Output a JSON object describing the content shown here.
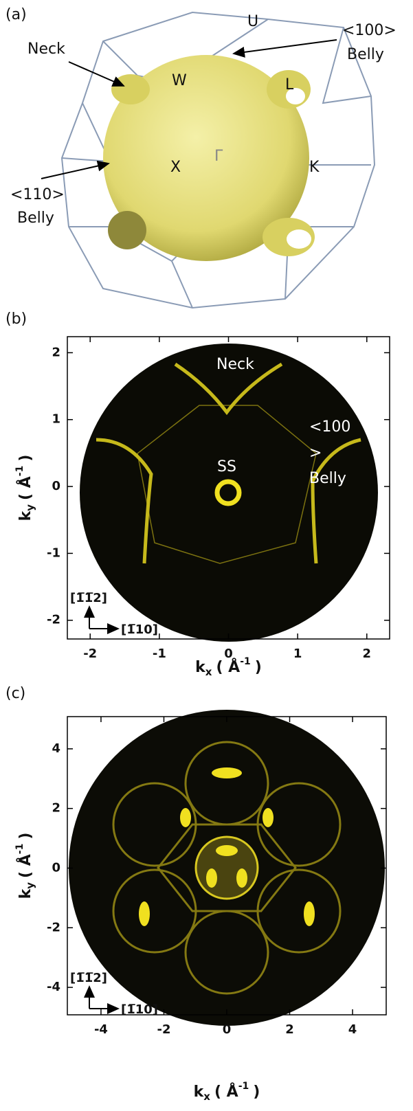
{
  "panels": [
    {
      "label": "(a)",
      "annotations": [
        "Neck",
        "<100>",
        "Belly",
        "U",
        "W",
        "L",
        "X",
        "Γ",
        "K",
        "<110>",
        "Belly"
      ]
    },
    {
      "label": "(b)",
      "annotations": [
        "Neck",
        "<100",
        ">",
        "Belly",
        "SS"
      ],
      "directions": [
        "[1̅1̅2]",
        "[1̅10]"
      ],
      "xlim": [
        -2.33,
        2.33
      ],
      "ylim": [
        -2.28,
        2.24
      ],
      "xticks": [
        -2,
        -1,
        0,
        1,
        2
      ],
      "yticks": [
        -2,
        -1,
        0,
        1,
        2
      ],
      "xlabel": {
        "symbol": "k",
        "sub": "x",
        "unit": "( Å",
        "sup": "-1",
        "close": ")"
      },
      "ylabel": {
        "symbol": "k",
        "sub": "y",
        "unit": "( Å",
        "sup": "-1",
        "close": ")"
      }
    },
    {
      "label": "(c)",
      "directions": [
        "[1̅1̅2]",
        "[1̅10]"
      ],
      "xlim": [
        -5.07,
        5.07
      ],
      "ylim": [
        -4.92,
        5.08
      ],
      "xticks": [
        -4,
        -2,
        0,
        2,
        4
      ],
      "yticks": [
        -4,
        -2,
        0,
        2,
        4
      ],
      "xlabel": {
        "symbol": "k",
        "sub": "x",
        "unit": "( Å",
        "sup": "-1",
        "close": ")"
      },
      "ylabel": {
        "symbol": "k",
        "sub": "y",
        "unit": "( Å",
        "sup": "-1",
        "close": ")"
      }
    }
  ]
}
